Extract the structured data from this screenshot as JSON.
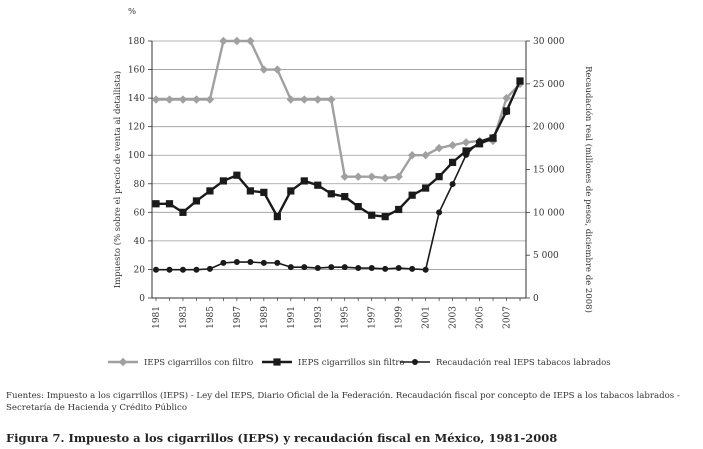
{
  "chart_data": {
    "type": "line",
    "x": [
      1981,
      1982,
      1983,
      1984,
      1985,
      1986,
      1987,
      1988,
      1989,
      1990,
      1991,
      1992,
      1993,
      1994,
      1995,
      1996,
      1997,
      1998,
      1999,
      2000,
      2001,
      2002,
      2003,
      2004,
      2005,
      2006,
      2007,
      2008
    ],
    "x_tick_labels": [
      "1981",
      "1983",
      "1985",
      "1987",
      "1989",
      "1991",
      "1993",
      "1995",
      "1997",
      "1999",
      "2001",
      "2003",
      "2005",
      "2007"
    ],
    "y_left_label_top": "%",
    "y_left_title": "Impuesto (% sobre el precio de venta al detallista)",
    "y_left_ticks": [
      "0",
      "20",
      "40",
      "60",
      "80",
      "100",
      "120",
      "140",
      "160",
      "180"
    ],
    "y_left_range": [
      0,
      180
    ],
    "y_right_title": "Recaudación real (millones de pesos, diciembre de 2008)",
    "y_right_ticks": [
      "0",
      "5 000",
      "10 000",
      "15 000",
      "20 000",
      "25 000",
      "30 000"
    ],
    "y_right_range": [
      0,
      30000
    ],
    "grid": "horizontal",
    "legend_position": "bottom",
    "series": [
      {
        "name": "IEPS cigarrillos con filtro",
        "axis": "left",
        "color": "#a0a0a0",
        "marker": "diamond",
        "values": [
          139,
          139,
          139,
          139,
          139,
          180,
          180,
          180,
          160,
          160,
          139,
          139,
          139,
          139,
          85,
          85,
          85,
          84,
          85,
          100,
          100,
          105,
          107,
          109,
          110,
          110,
          140,
          150
        ]
      },
      {
        "name": "IEPS cigarrillos sin filtro",
        "axis": "left",
        "color": "#1a1a1a",
        "marker": "square",
        "values": [
          66,
          66,
          60,
          68,
          75,
          82,
          86,
          75,
          74,
          57,
          75,
          82,
          79,
          73,
          71,
          64,
          58,
          57,
          62,
          72,
          77,
          85,
          95,
          103,
          108,
          112,
          131,
          152
        ]
      },
      {
        "name": "Recaudación real IEPS tabacos labrados",
        "axis": "right",
        "color": "#1a1a1a",
        "marker": "circle",
        "values": [
          3300,
          3300,
          3300,
          3300,
          3400,
          4100,
          4200,
          4200,
          4100,
          4100,
          3600,
          3600,
          3500,
          3600,
          3600,
          3500,
          3500,
          3400,
          3500,
          3400,
          3300,
          10000,
          13300,
          16700,
          18300,
          18800,
          21700,
          25300
        ]
      }
    ]
  },
  "sources": "Fuentes: Impuesto a los cigarrillos (IEPS) - Ley del IEPS, Diario Oficial de la Federación. Recaudación fiscal por concepto de IEPS a los tabacos labrados - Secretaría de Hacienda y Crédito Público",
  "caption": "Figura 7. Impuesto a los cigarrillos (IEPS) y recaudación fiscal en México, 1981-2008"
}
